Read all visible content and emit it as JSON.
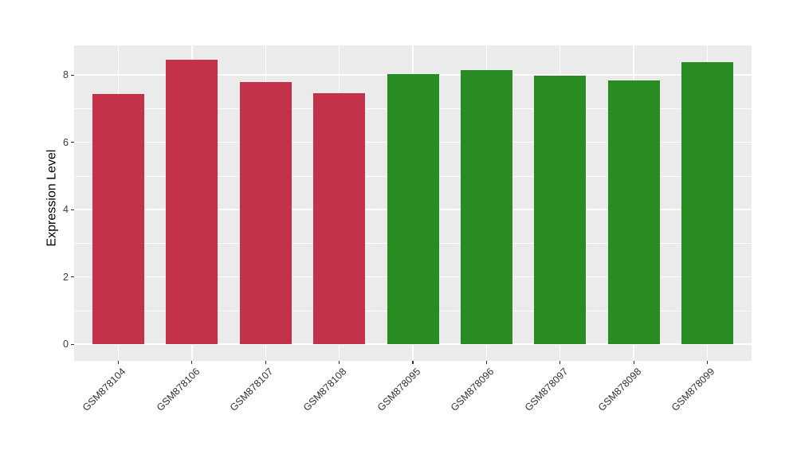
{
  "chart_data": {
    "type": "bar",
    "title": "",
    "xlabel": "",
    "ylabel": "Expression Level",
    "categories": [
      "GSM878104",
      "GSM878106",
      "GSM878107",
      "GSM878108",
      "GSM878095",
      "GSM878096",
      "GSM878097",
      "GSM878098",
      "GSM878099"
    ],
    "values": [
      7.43,
      8.46,
      7.78,
      7.46,
      8.03,
      8.14,
      7.98,
      7.84,
      8.39
    ],
    "bar_colors": [
      "#C3314B",
      "#C3314B",
      "#C3314B",
      "#C3314B",
      "#288C22",
      "#288C22",
      "#288C22",
      "#288C22",
      "#288C22"
    ],
    "group_colors": {
      "red_group": "#C3314B",
      "green_group": "#288C22"
    },
    "yticks": [
      0,
      2,
      4,
      6,
      8
    ],
    "ytick_labels": [
      "0",
      "2",
      "4",
      "6",
      "8"
    ],
    "ylim": [
      0,
      8.9
    ],
    "grid": true,
    "legend_position": "none",
    "panel_background": "#EBEBEB",
    "grid_color": "#FFFFFF",
    "tick_color": "#333333",
    "bar_relative_width": 0.7
  }
}
